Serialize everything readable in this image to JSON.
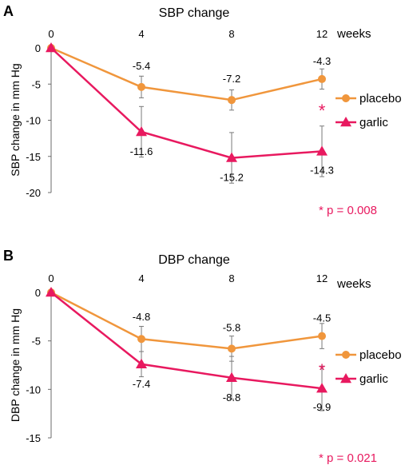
{
  "chart_data": [
    {
      "type": "line",
      "panel_label": "A",
      "title": "SBP change",
      "ylabel": "SBP change in mm Hg",
      "x_unit_label": "weeks",
      "categories": [
        "0",
        "4",
        "8",
        "12"
      ],
      "x": [
        0,
        4,
        8,
        12
      ],
      "ylim": [
        -20,
        0
      ],
      "yticks": [
        "0",
        "-5",
        "-10",
        "-15",
        "-20"
      ],
      "legend_position": "right",
      "series": [
        {
          "name": "placebo",
          "color": "#F0963C",
          "marker": "circle",
          "values": [
            0,
            -5.4,
            -7.2,
            -4.3
          ],
          "labels": [
            "",
            "-5.4",
            "-7.2",
            "-4.3"
          ],
          "error": [
            0,
            1.5,
            1.4,
            1.4
          ]
        },
        {
          "name": "garlic",
          "color": "#E8195F",
          "marker": "triangle",
          "values": [
            0,
            -11.6,
            -15.2,
            -14.3
          ],
          "labels": [
            "",
            "-11.6",
            "-15.2",
            "-14.3"
          ],
          "error": [
            0,
            3.5,
            3.5,
            3.5
          ]
        }
      ],
      "significance_marker": "*",
      "p_value_text": "* p = 0.008",
      "annotation_color": "#E8195F"
    },
    {
      "type": "line",
      "panel_label": "B",
      "title": "DBP change",
      "ylabel": "DBP change in mm Hg",
      "x_unit_label": "weeks",
      "categories": [
        "0",
        "4",
        "8",
        "12"
      ],
      "x": [
        0,
        4,
        8,
        12
      ],
      "ylim": [
        -15,
        0
      ],
      "yticks": [
        "0",
        "-5",
        "-10",
        "-15"
      ],
      "legend_position": "right",
      "series": [
        {
          "name": "placebo",
          "color": "#F0963C",
          "marker": "circle",
          "values": [
            0,
            -4.8,
            -5.8,
            -4.5
          ],
          "labels": [
            "",
            "-4.8",
            "-5.8",
            "-4.5"
          ],
          "error": [
            0,
            1.3,
            1.3,
            1.3
          ]
        },
        {
          "name": "garlic",
          "color": "#E8195F",
          "marker": "triangle",
          "values": [
            0,
            -7.4,
            -8.8,
            -9.9
          ],
          "labels": [
            "",
            "-7.4",
            "-8.8",
            "-9.9"
          ],
          "error": [
            0,
            1.3,
            2.2,
            2.3
          ]
        }
      ],
      "significance_marker": "*",
      "p_value_text": "* p = 0.021",
      "annotation_color": "#E8195F"
    }
  ]
}
